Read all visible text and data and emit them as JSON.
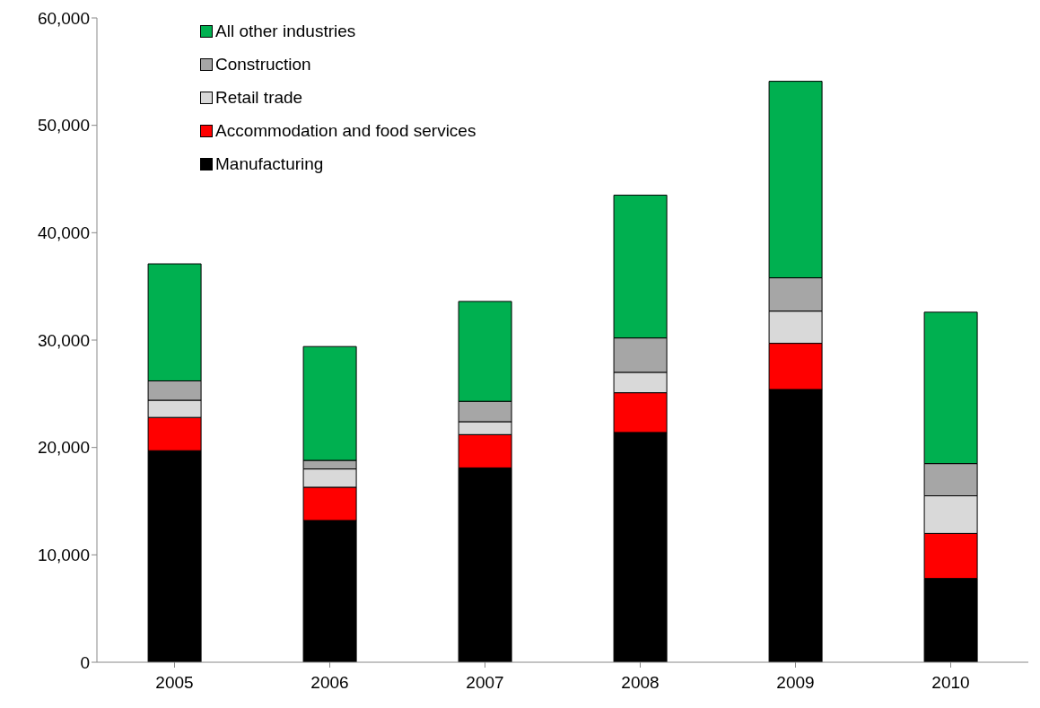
{
  "chart_data": {
    "type": "bar",
    "stacked": true,
    "categories": [
      "2005",
      "2006",
      "2007",
      "2008",
      "2009",
      "2010"
    ],
    "series": [
      {
        "name": "Manufacturing",
        "color": "#000000",
        "values": [
          19700,
          13200,
          18100,
          21400,
          25400,
          7800
        ]
      },
      {
        "name": "Accommodation and food services",
        "color": "#ff0000",
        "values": [
          3100,
          3100,
          3100,
          3700,
          4300,
          4200
        ]
      },
      {
        "name": "Retail trade",
        "color": "#d9d9d9",
        "values": [
          1600,
          1700,
          1200,
          1900,
          3000,
          3500
        ]
      },
      {
        "name": "Construction",
        "color": "#a6a6a6",
        "values": [
          1800,
          800,
          1900,
          3200,
          3100,
          3000
        ]
      },
      {
        "name": "All other industries",
        "color": "#00b050",
        "values": [
          10900,
          10600,
          9300,
          13300,
          18300,
          14100
        ]
      }
    ],
    "ylim": [
      0,
      60000
    ],
    "yticks": [
      {
        "value": 0,
        "label": "0"
      },
      {
        "value": 10000,
        "label": "10,000"
      },
      {
        "value": 20000,
        "label": "20,000"
      },
      {
        "value": 30000,
        "label": "30,000"
      },
      {
        "value": 40000,
        "label": "40,000"
      },
      {
        "value": 50000,
        "label": "50,000"
      },
      {
        "value": 60000,
        "label": "60,000"
      }
    ],
    "legend": "top left",
    "grid": false
  }
}
